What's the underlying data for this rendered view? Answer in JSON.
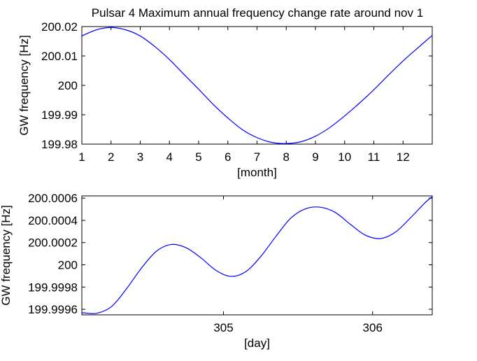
{
  "title": "Pulsar 4 Maximum annual frequency change rate around nov 1",
  "chart_data": [
    {
      "type": "line",
      "title": "Pulsar 4 Maximum annual frequency change rate around nov 1",
      "xlabel": "[month]",
      "ylabel": "GW frequency [Hz]",
      "xlim": [
        1,
        13
      ],
      "ylim": [
        199.98,
        200.02
      ],
      "xticks": [
        1,
        2,
        3,
        4,
        5,
        6,
        7,
        8,
        9,
        10,
        11,
        12
      ],
      "xtick_labels": [
        "1",
        "2",
        "3",
        "4",
        "5",
        "6",
        "7",
        "8",
        "9",
        "10",
        "11",
        "12"
      ],
      "yticks": [
        199.98,
        199.99,
        200,
        200.01,
        200.02
      ],
      "ytick_labels": [
        "199.98",
        "199.99",
        "200",
        "200.01",
        "200.02"
      ],
      "series": [
        {
          "color": "#0000ff",
          "x": [
            1,
            1.5,
            2,
            2.5,
            3,
            3.5,
            4,
            4.5,
            5,
            5.5,
            6,
            6.5,
            7,
            7.5,
            8,
            8.5,
            9,
            9.5,
            10,
            10.5,
            11,
            11.5,
            12,
            12.5,
            13
          ],
          "y": [
            200.0168,
            200.0189,
            200.0197,
            200.0189,
            200.0168,
            200.0132,
            200.0088,
            200.0037,
            199.9987,
            199.9935,
            199.9889,
            199.9849,
            199.9822,
            199.9806,
            199.9802,
            199.9808,
            199.9827,
            199.9857,
            199.9896,
            199.9939,
            199.9985,
            200.0035,
            200.0083,
            200.0127,
            200.017
          ]
        }
      ]
    },
    {
      "type": "line",
      "xlabel": "[day]",
      "ylabel": "GW frequency [Hz]",
      "xlim": [
        304.05,
        306.4
      ],
      "ylim": [
        199.99955,
        200.00062
      ],
      "xticks": [
        305,
        306
      ],
      "xtick_labels": [
        "305",
        "306"
      ],
      "yticks": [
        199.9996,
        199.9998,
        200,
        200.0002,
        200.0004,
        200.0006
      ],
      "ytick_labels": [
        "199.9996",
        "199.9998",
        "200",
        "200.0002",
        "200.0004",
        "200.0006"
      ],
      "series": [
        {
          "color": "#0000ff",
          "x": [
            304.05,
            304.15,
            304.25,
            304.35,
            304.45,
            304.55,
            304.65,
            304.75,
            304.85,
            304.95,
            305.05,
            305.15,
            305.25,
            305.35,
            305.45,
            305.55,
            305.65,
            305.75,
            305.85,
            305.95,
            306.05,
            306.15,
            306.25,
            306.35,
            306.4
          ],
          "y": [
            199.999569,
            199.999564,
            199.999625,
            199.999785,
            199.999971,
            200.000122,
            200.000183,
            200.000153,
            200.000061,
            199.99995,
            199.999896,
            199.999939,
            200.000075,
            200.000253,
            200.000418,
            200.000504,
            200.000518,
            200.000471,
            200.000365,
            200.000268,
            200.000236,
            200.000291,
            200.000417,
            200.000556,
            200.000613
          ]
        }
      ]
    }
  ]
}
